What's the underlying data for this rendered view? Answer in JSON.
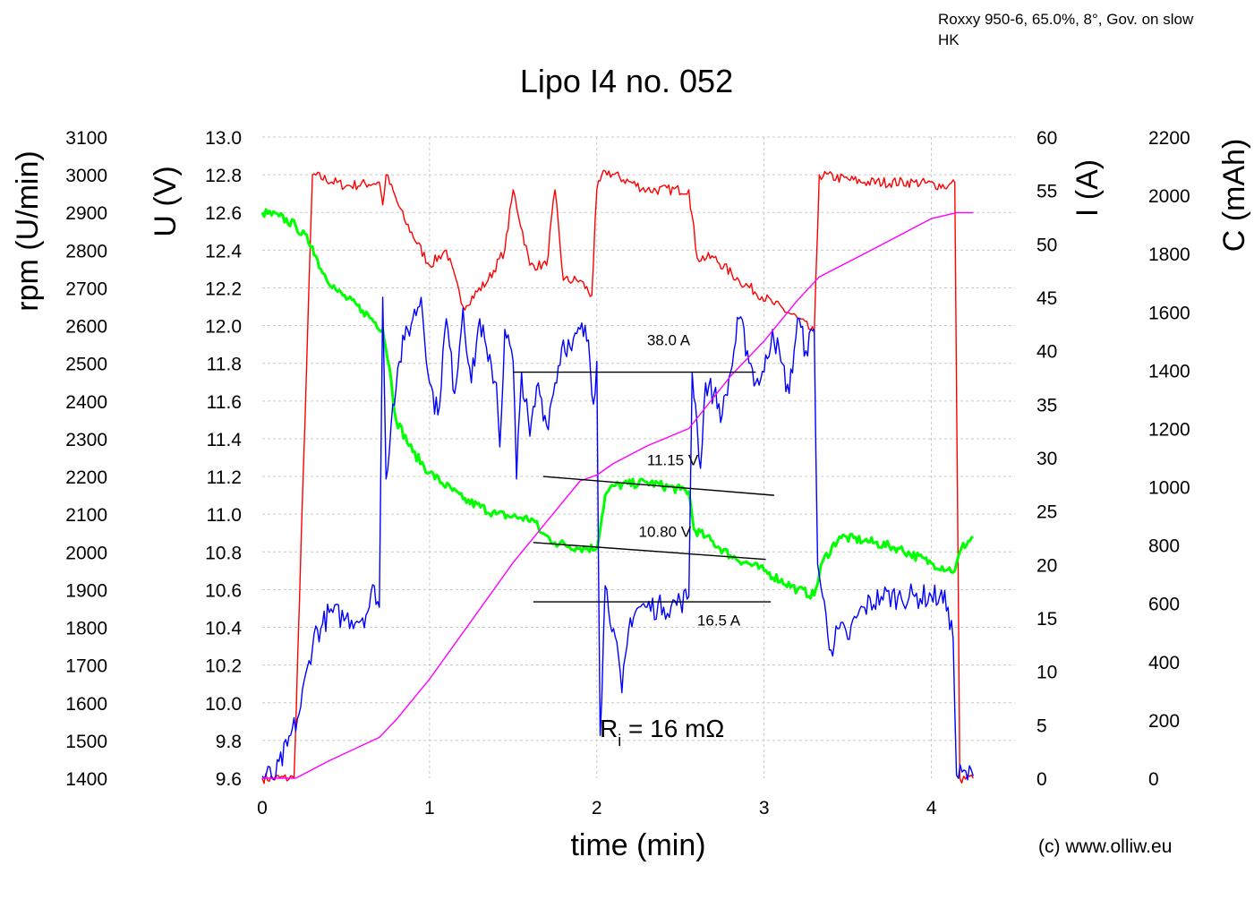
{
  "chart_data": {
    "type": "line",
    "title": "Lipo I4 no. 052",
    "subtitle_lines": [
      "Roxxy 950-6, 65.0%, 8°, Gov. on slow",
      "HK"
    ],
    "credit": "(c) www.olliw.eu",
    "xlabel": "time (min)",
    "xlim": [
      0,
      4.5
    ],
    "x_ticks": [
      "0",
      "1",
      "2",
      "3",
      "4"
    ],
    "grid": true,
    "axes": {
      "rpm": {
        "label": "rpm (U/min)",
        "lim": [
          1400,
          3100
        ],
        "ticks": [
          "1400",
          "1500",
          "1600",
          "1700",
          "1800",
          "1900",
          "2000",
          "2100",
          "2200",
          "2300",
          "2400",
          "2500",
          "2600",
          "2700",
          "2800",
          "2900",
          "3000",
          "3100"
        ]
      },
      "U": {
        "label": "U (V)",
        "lim": [
          9.6,
          13.0
        ],
        "ticks": [
          "9.6",
          "9.8",
          "10.0",
          "10.2",
          "10.4",
          "10.6",
          "10.8",
          "11.0",
          "11.2",
          "11.4",
          "11.6",
          "11.8",
          "12.0",
          "12.2",
          "12.4",
          "12.6",
          "12.8",
          "13.0"
        ]
      },
      "I": {
        "label": "I (A)",
        "lim": [
          0,
          60
        ],
        "ticks": [
          "0",
          "5",
          "10",
          "15",
          "20",
          "25",
          "30",
          "35",
          "40",
          "45",
          "50",
          "55",
          "60"
        ]
      },
      "C": {
        "label": "C (mAh)",
        "lim": [
          0,
          2200
        ],
        "ticks": [
          "0",
          "200",
          "400",
          "600",
          "800",
          "1000",
          "1200",
          "1400",
          "1600",
          "1800",
          "2000",
          "2200"
        ]
      }
    },
    "series": [
      {
        "axis": "rpm",
        "color": "#ff0000",
        "jitter": 14,
        "points": [
          [
            0,
            1400
          ],
          [
            0.19,
            1400
          ],
          [
            0.3,
            3000
          ],
          [
            0.5,
            2970
          ],
          [
            0.7,
            2980
          ],
          [
            0.72,
            2920
          ],
          [
            0.74,
            3000
          ],
          [
            0.85,
            2880
          ],
          [
            1.0,
            2760
          ],
          [
            1.1,
            2800
          ],
          [
            1.2,
            2650
          ],
          [
            1.35,
            2720
          ],
          [
            1.45,
            2800
          ],
          [
            1.5,
            2960
          ],
          [
            1.6,
            2760
          ],
          [
            1.7,
            2760
          ],
          [
            1.75,
            2960
          ],
          [
            1.8,
            2720
          ],
          [
            1.9,
            2720
          ],
          [
            1.97,
            2680
          ],
          [
            2.0,
            2960
          ],
          [
            2.05,
            3010
          ],
          [
            2.3,
            2960
          ],
          [
            2.55,
            2960
          ],
          [
            2.6,
            2780
          ],
          [
            2.7,
            2780
          ],
          [
            2.85,
            2720
          ],
          [
            3.05,
            2660
          ],
          [
            3.2,
            2620
          ],
          [
            3.3,
            2580
          ],
          [
            3.33,
            3000
          ],
          [
            3.6,
            2980
          ],
          [
            3.9,
            2980
          ],
          [
            4.1,
            2970
          ],
          [
            4.14,
            2980
          ],
          [
            4.17,
            1400
          ],
          [
            4.25,
            1400
          ]
        ]
      },
      {
        "axis": "U",
        "color": "#00ff00",
        "jitter": 0.025,
        "width": 3,
        "points": [
          [
            0,
            12.6
          ],
          [
            0.1,
            12.58
          ],
          [
            0.2,
            12.53
          ],
          [
            0.3,
            12.42
          ],
          [
            0.35,
            12.3
          ],
          [
            0.45,
            12.18
          ],
          [
            0.6,
            12.08
          ],
          [
            0.72,
            11.98
          ],
          [
            0.76,
            11.78
          ],
          [
            0.8,
            11.5
          ],
          [
            0.9,
            11.33
          ],
          [
            1.0,
            11.22
          ],
          [
            1.2,
            11.08
          ],
          [
            1.4,
            11.0
          ],
          [
            1.55,
            10.98
          ],
          [
            1.62,
            10.97
          ],
          [
            1.67,
            10.9
          ],
          [
            1.75,
            10.85
          ],
          [
            1.9,
            10.82
          ],
          [
            2.0,
            10.82
          ],
          [
            2.05,
            11.1
          ],
          [
            2.1,
            11.15
          ],
          [
            2.3,
            11.17
          ],
          [
            2.5,
            11.13
          ],
          [
            2.55,
            11.12
          ],
          [
            2.58,
            10.92
          ],
          [
            2.65,
            10.88
          ],
          [
            2.8,
            10.78
          ],
          [
            3.0,
            10.7
          ],
          [
            3.2,
            10.6
          ],
          [
            3.3,
            10.57
          ],
          [
            3.35,
            10.75
          ],
          [
            3.45,
            10.88
          ],
          [
            3.6,
            10.86
          ],
          [
            3.8,
            10.82
          ],
          [
            4.0,
            10.74
          ],
          [
            4.14,
            10.7
          ],
          [
            4.18,
            10.82
          ],
          [
            4.25,
            10.88
          ]
        ]
      },
      {
        "axis": "I",
        "color": "#0000ff",
        "jitter": 1.2,
        "points": [
          [
            0,
            0.2
          ],
          [
            0.08,
            0.2
          ],
          [
            0.15,
            3
          ],
          [
            0.22,
            6
          ],
          [
            0.28,
            11
          ],
          [
            0.31,
            13.5
          ],
          [
            0.35,
            14
          ],
          [
            0.4,
            15.5
          ],
          [
            0.5,
            15
          ],
          [
            0.6,
            15
          ],
          [
            0.64,
            16
          ],
          [
            0.67,
            18
          ],
          [
            0.7,
            16
          ],
          [
            0.72,
            45
          ],
          [
            0.74,
            28
          ],
          [
            0.78,
            35
          ],
          [
            0.82,
            39
          ],
          [
            0.85,
            41
          ],
          [
            0.9,
            43
          ],
          [
            0.95,
            45
          ],
          [
            1.0,
            37
          ],
          [
            1.05,
            34
          ],
          [
            1.1,
            43
          ],
          [
            1.15,
            36
          ],
          [
            1.2,
            44
          ],
          [
            1.25,
            37
          ],
          [
            1.3,
            43
          ],
          [
            1.35,
            39
          ],
          [
            1.4,
            37
          ],
          [
            1.42,
            31
          ],
          [
            1.45,
            42
          ],
          [
            1.5,
            39
          ],
          [
            1.52,
            28
          ],
          [
            1.55,
            38
          ],
          [
            1.6,
            32
          ],
          [
            1.65,
            37
          ],
          [
            1.7,
            33
          ],
          [
            1.75,
            37
          ],
          [
            1.8,
            41
          ],
          [
            1.85,
            40
          ],
          [
            1.9,
            42
          ],
          [
            1.95,
            41
          ],
          [
            1.98,
            35
          ],
          [
            2.0,
            39
          ],
          [
            2.02,
            4
          ],
          [
            2.05,
            18
          ],
          [
            2.1,
            14
          ],
          [
            2.15,
            8
          ],
          [
            2.2,
            15
          ],
          [
            2.25,
            16
          ],
          [
            2.3,
            16
          ],
          [
            2.4,
            16
          ],
          [
            2.5,
            16.5
          ],
          [
            2.55,
            17
          ],
          [
            2.57,
            38
          ],
          [
            2.6,
            33
          ],
          [
            2.62,
            29
          ],
          [
            2.65,
            37
          ],
          [
            2.7,
            36
          ],
          [
            2.75,
            34
          ],
          [
            2.8,
            38
          ],
          [
            2.85,
            43
          ],
          [
            2.9,
            40
          ],
          [
            2.95,
            37
          ],
          [
            3.0,
            38
          ],
          [
            3.05,
            42
          ],
          [
            3.1,
            39
          ],
          [
            3.15,
            36
          ],
          [
            3.2,
            43
          ],
          [
            3.25,
            40
          ],
          [
            3.3,
            42
          ],
          [
            3.32,
            20
          ],
          [
            3.35,
            17
          ],
          [
            3.4,
            12
          ],
          [
            3.45,
            14
          ],
          [
            3.5,
            13
          ],
          [
            3.55,
            15
          ],
          [
            3.6,
            16
          ],
          [
            3.7,
            17
          ],
          [
            3.8,
            17
          ],
          [
            3.9,
            17
          ],
          [
            4.0,
            17
          ],
          [
            4.05,
            17
          ],
          [
            4.1,
            16
          ],
          [
            4.13,
            13
          ],
          [
            4.15,
            0.3
          ],
          [
            4.25,
            0.2
          ]
        ]
      },
      {
        "axis": "C",
        "color": "#ff00ff",
        "jitter": 0,
        "points": [
          [
            0,
            0
          ],
          [
            0.2,
            0
          ],
          [
            0.4,
            60
          ],
          [
            0.7,
            140
          ],
          [
            0.8,
            200
          ],
          [
            1.0,
            340
          ],
          [
            1.2,
            500
          ],
          [
            1.5,
            740
          ],
          [
            1.7,
            880
          ],
          [
            1.9,
            1020
          ],
          [
            2.0,
            1040
          ],
          [
            2.1,
            1080
          ],
          [
            2.3,
            1140
          ],
          [
            2.55,
            1200
          ],
          [
            2.8,
            1380
          ],
          [
            3.0,
            1500
          ],
          [
            3.2,
            1640
          ],
          [
            3.33,
            1720
          ],
          [
            3.6,
            1800
          ],
          [
            3.8,
            1860
          ],
          [
            4.0,
            1920
          ],
          [
            4.15,
            1940
          ],
          [
            4.25,
            1940
          ]
        ]
      }
    ],
    "annotations": [
      {
        "axis": "I",
        "text": "38.0 A",
        "tx": 2.3,
        "ty": 40.5,
        "line": [
          [
            1.5,
            38
          ],
          [
            2.95,
            38
          ]
        ]
      },
      {
        "axis": "U",
        "text": "11.15 V",
        "tx": 2.3,
        "ty": 11.26,
        "line": [
          [
            1.68,
            11.2
          ],
          [
            3.06,
            11.1
          ]
        ]
      },
      {
        "axis": "U",
        "text": "10.80 V",
        "tx": 2.25,
        "ty": 10.88,
        "line": [
          [
            1.62,
            10.85
          ],
          [
            3.01,
            10.76
          ]
        ]
      },
      {
        "axis": "I",
        "text": "16.5 A",
        "tx": 2.6,
        "ty": 14.3,
        "line": [
          [
            1.62,
            16.5
          ],
          [
            3.04,
            16.5
          ]
        ]
      }
    ],
    "ri_text": {
      "prefix": "R",
      "sub": "i",
      "suffix": " = 16 mΩ"
    }
  }
}
